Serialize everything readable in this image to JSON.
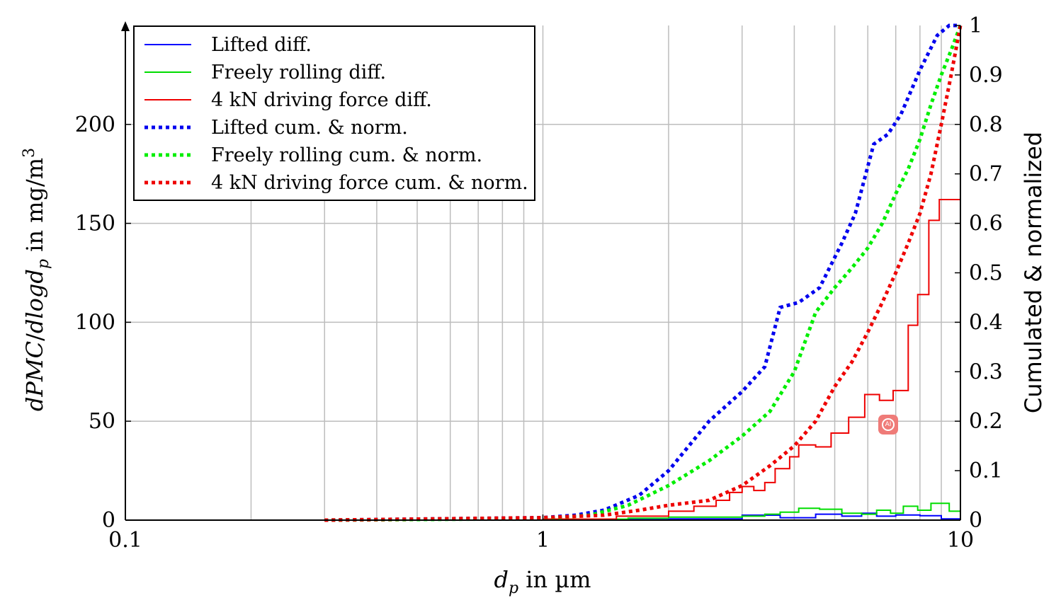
{
  "chart_data": {
    "type": "line",
    "xscale": "log",
    "xlim": [
      0.1,
      10
    ],
    "ylim": [
      0,
      250
    ],
    "y2lim": [
      0,
      1
    ],
    "xlabel": "d_p in µm",
    "ylabel": "dPMC/dlogd_p in mg/m^3",
    "y2label": "Cumulated & normalized",
    "grid": true,
    "legend_position": "top-left",
    "x_ticks": [
      "0.1",
      "1",
      "10"
    ],
    "y_ticks": [
      "0",
      "50",
      "100",
      "150",
      "200"
    ],
    "y2_ticks": [
      "0",
      "0.1",
      "0.2",
      "0.3",
      "0.4",
      "0.5",
      "0.6",
      "0.7",
      "0.8",
      "0.9",
      "1"
    ],
    "diff_series": [
      {
        "name": "Lifted diff.",
        "color": "#0000ff",
        "axis": "left",
        "style": "step",
        "edges": [
          0.3,
          1.0,
          2.0,
          3.0,
          3.7,
          4.5,
          5.2,
          5.8,
          6.3,
          7.0,
          8.0,
          9.0,
          10.0
        ],
        "values": [
          0,
          0.3,
          0.6,
          2.5,
          1.2,
          3.0,
          2.0,
          3.5,
          2.0,
          2.6,
          2.2,
          0.6
        ]
      },
      {
        "name": "Freely rolling diff.",
        "color": "#00dd00",
        "axis": "left",
        "style": "step",
        "edges": [
          0.3,
          1.0,
          1.6,
          2.0,
          3.0,
          3.4,
          3.7,
          4.1,
          4.6,
          5.2,
          5.8,
          6.3,
          6.8,
          7.3,
          7.9,
          8.5,
          9.0,
          9.4,
          10.0
        ],
        "values": [
          0,
          0.5,
          1.0,
          1.5,
          2.0,
          3.0,
          4.0,
          6.0,
          5.5,
          3.5,
          3.0,
          5.0,
          3.5,
          7.0,
          5.0,
          8.5,
          8.5,
          4.5
        ]
      },
      {
        "name": "4 kN driving force diff.",
        "color": "#ee0000",
        "axis": "left",
        "style": "step",
        "edges": [
          0.3,
          1.0,
          1.5,
          2.0,
          2.3,
          2.6,
          2.8,
          3.0,
          3.2,
          3.4,
          3.6,
          3.9,
          4.1,
          4.5,
          4.9,
          5.4,
          5.9,
          6.4,
          6.9,
          7.5,
          7.9,
          8.4,
          8.9,
          9.4,
          10.0
        ],
        "values": [
          0,
          0.5,
          2.0,
          4.5,
          7.0,
          10.0,
          14.0,
          17.0,
          15.0,
          19.0,
          26.0,
          32.0,
          38.0,
          37.0,
          44.0,
          52.0,
          63.5,
          60.5,
          65.5,
          98.5,
          114.0,
          151.5,
          162.0,
          162.0
        ]
      }
    ],
    "cum_series": [
      {
        "name": "Lifted cum. & norm.",
        "color": "#0000ee",
        "axis": "right",
        "style": "dotted",
        "x": [
          0.3,
          1.0,
          1.2,
          1.4,
          1.7,
          2.0,
          2.5,
          3.0,
          3.4,
          3.7,
          4.1,
          4.6,
          5.2,
          5.6,
          6.2,
          6.7,
          7.2,
          8.0,
          8.8,
          9.4,
          10.0
        ],
        "y": [
          0,
          0.005,
          0.01,
          0.02,
          0.05,
          0.1,
          0.2,
          0.26,
          0.31,
          0.43,
          0.44,
          0.47,
          0.56,
          0.62,
          0.76,
          0.78,
          0.82,
          0.91,
          0.98,
          1.0,
          1.0
        ]
      },
      {
        "name": "Freely rolling cum. & norm.",
        "color": "#00ee00",
        "axis": "right",
        "style": "dotted",
        "x": [
          0.3,
          1.0,
          1.3,
          1.6,
          2.0,
          2.5,
          3.0,
          3.5,
          4.0,
          4.5,
          5.0,
          5.5,
          6.0,
          6.5,
          7.0,
          7.5,
          8.0,
          8.5,
          9.0,
          9.5,
          10.0
        ],
        "y": [
          0,
          0.003,
          0.01,
          0.03,
          0.07,
          0.12,
          0.17,
          0.22,
          0.3,
          0.42,
          0.47,
          0.51,
          0.55,
          0.6,
          0.66,
          0.71,
          0.77,
          0.84,
          0.9,
          0.95,
          1.0
        ]
      },
      {
        "name": "4 kN driving force cum. & norm.",
        "color": "#ee0000",
        "axis": "right",
        "style": "dotted",
        "x": [
          0.3,
          1.0,
          1.4,
          1.7,
          2.0,
          2.5,
          3.0,
          3.5,
          4.0,
          4.5,
          5.0,
          5.5,
          6.0,
          6.5,
          7.0,
          7.5,
          8.0,
          8.5,
          9.0,
          9.5,
          10.0
        ],
        "y": [
          0,
          0.005,
          0.01,
          0.02,
          0.03,
          0.04,
          0.07,
          0.11,
          0.15,
          0.2,
          0.27,
          0.32,
          0.38,
          0.44,
          0.5,
          0.56,
          0.62,
          0.7,
          0.8,
          0.9,
          1.0
        ]
      }
    ]
  }
}
